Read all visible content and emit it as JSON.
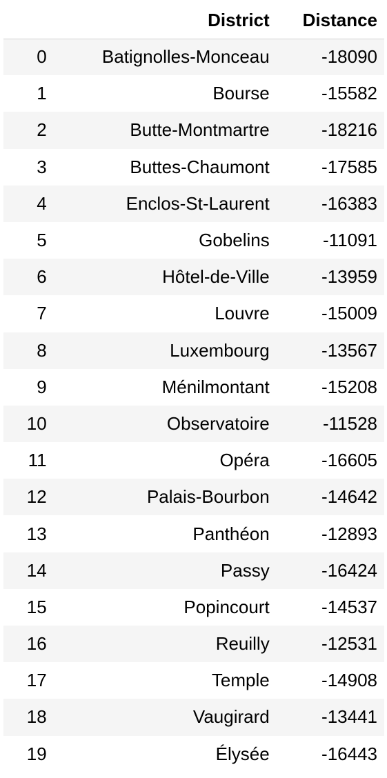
{
  "table": {
    "headers": {
      "index": "",
      "district": "District",
      "distance": "Distance"
    },
    "rows": [
      {
        "index": "0",
        "district": "Batignolles-Monceau",
        "distance": "-18090"
      },
      {
        "index": "1",
        "district": "Bourse",
        "distance": "-15582"
      },
      {
        "index": "2",
        "district": "Butte-Montmartre",
        "distance": "-18216"
      },
      {
        "index": "3",
        "district": "Buttes-Chaumont",
        "distance": "-17585"
      },
      {
        "index": "4",
        "district": "Enclos-St-Laurent",
        "distance": "-16383"
      },
      {
        "index": "5",
        "district": "Gobelins",
        "distance": "-11091"
      },
      {
        "index": "6",
        "district": "Hôtel-de-Ville",
        "distance": "-13959"
      },
      {
        "index": "7",
        "district": "Louvre",
        "distance": "-15009"
      },
      {
        "index": "8",
        "district": "Luxembourg",
        "distance": "-13567"
      },
      {
        "index": "9",
        "district": "Ménilmontant",
        "distance": "-15208"
      },
      {
        "index": "10",
        "district": "Observatoire",
        "distance": "-11528"
      },
      {
        "index": "11",
        "district": "Opéra",
        "distance": "-16605"
      },
      {
        "index": "12",
        "district": "Palais-Bourbon",
        "distance": "-14642"
      },
      {
        "index": "13",
        "district": "Panthéon",
        "distance": "-12893"
      },
      {
        "index": "14",
        "district": "Passy",
        "distance": "-16424"
      },
      {
        "index": "15",
        "district": "Popincourt",
        "distance": "-14537"
      },
      {
        "index": "16",
        "district": "Reuilly",
        "distance": "-12531"
      },
      {
        "index": "17",
        "district": "Temple",
        "distance": "-14908"
      },
      {
        "index": "18",
        "district": "Vaugirard",
        "distance": "-13441"
      },
      {
        "index": "19",
        "district": "Élysée",
        "distance": "-16443"
      }
    ]
  }
}
